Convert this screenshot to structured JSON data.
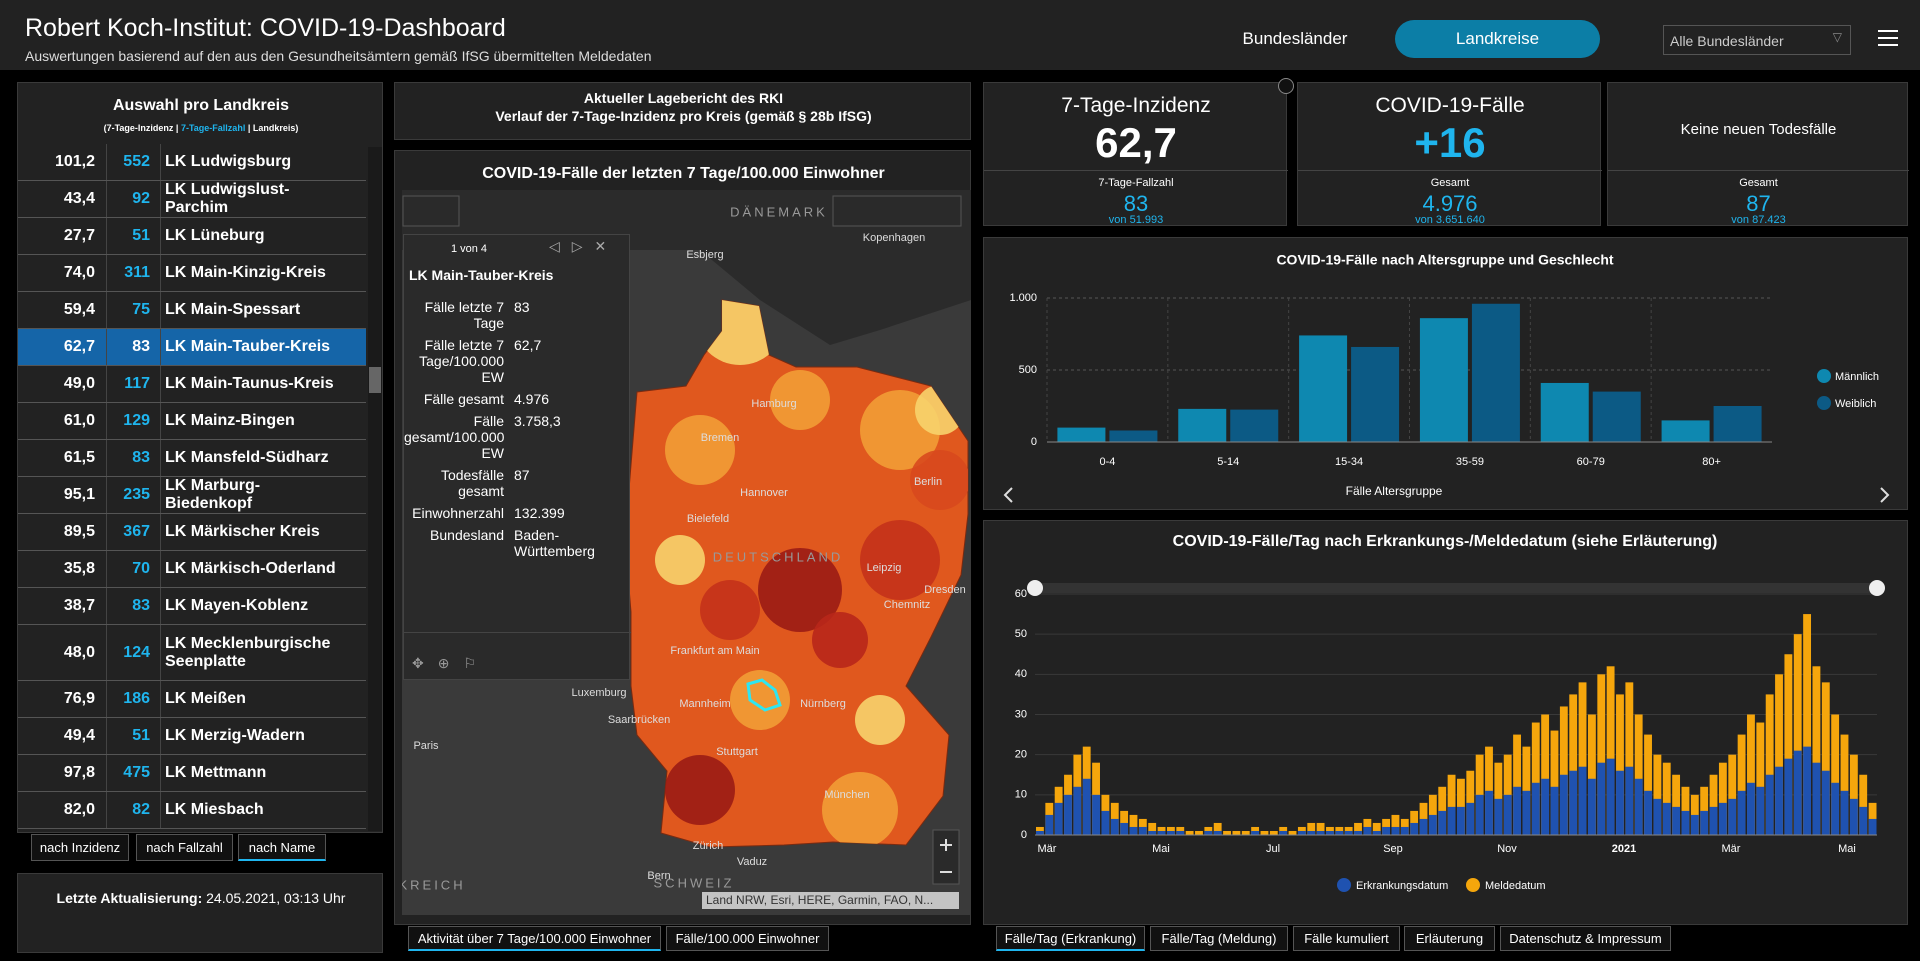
{
  "header": {
    "title": "Robert Koch-Institut: COVID-19-Dashboard",
    "subtitle": "Auswertungen basierend auf den aus den Gesundheitsämtern gemäß IfSG übermittelten Meldedaten",
    "nav": [
      "Bundesländer",
      "Landkreise"
    ],
    "dropdown": "Alle Bundesländer"
  },
  "sidebar": {
    "title": "Auswahl pro Landkreis",
    "legend": [
      "(7-Tage-Inzidenz |",
      "7-Tage-Fallzahl",
      "| Landkreis)"
    ],
    "rows": [
      [
        "101,2",
        "552",
        "LK Ludwigsburg"
      ],
      [
        "43,4",
        "92",
        "LK Ludwigslust-Parchim"
      ],
      [
        "27,7",
        "51",
        "LK Lüneburg"
      ],
      [
        "74,0",
        "311",
        "LK Main-Kinzig-Kreis"
      ],
      [
        "59,4",
        "75",
        "LK Main-Spessart"
      ],
      [
        "62,7",
        "83",
        "LK Main-Tauber-Kreis"
      ],
      [
        "49,0",
        "117",
        "LK Main-Taunus-Kreis"
      ],
      [
        "61,0",
        "129",
        "LK Mainz-Bingen"
      ],
      [
        "61,5",
        "83",
        "LK Mansfeld-Südharz"
      ],
      [
        "95,1",
        "235",
        "LK Marburg-Biedenkopf"
      ],
      [
        "89,5",
        "367",
        "LK Märkischer Kreis"
      ],
      [
        "35,8",
        "70",
        "LK Märkisch-Oderland"
      ],
      [
        "38,7",
        "83",
        "LK Mayen-Koblenz"
      ],
      [
        "48,0",
        "124",
        "LK Mecklenburgische Seenplatte"
      ],
      [
        "76,9",
        "186",
        "LK Meißen"
      ],
      [
        "49,4",
        "51",
        "LK Merzig-Wadern"
      ],
      [
        "97,8",
        "475",
        "LK Mettmann"
      ],
      [
        "82,0",
        "82",
        "LK Miesbach"
      ]
    ],
    "sort_buttons": [
      "nach Inzidenz",
      "nach Fallzahl",
      "nach Name"
    ],
    "update_label": "Letzte Aktualisierung:",
    "update_value": "24.05.2021, 03:13 Uhr"
  },
  "report": {
    "line1": "Aktueller Lagebericht des RKI",
    "line2": "Verlauf der 7-Tage-Inzidenz pro Kreis (gemäß § 28b IfSG)"
  },
  "map": {
    "title": "COVID-19-Fälle der letzten 7 Tage/100.000 Einwohner",
    "labels": [
      "DÄNEMARK",
      "Esbjerg",
      "Kopenhagen",
      "Hamburg",
      "Bremen",
      "Hannover",
      "Berlin",
      "Bielefeld",
      "DEUTSCHLAND",
      "Leipzig",
      "Dresden",
      "Chemnitz",
      "Frankfurt am Main",
      "Luxemburg",
      "Mannheim",
      "Nürnberg",
      "Saarbrücken",
      "Stuttgart",
      "Paris",
      "München",
      "Zürich",
      "Vaduz",
      "Bern",
      "SCHWEIZ",
      "ANKREICH"
    ],
    "attribution": "Land NRW, Esri, HERE, Garmin, FAO, N...",
    "popup": {
      "pager": "1 von 4",
      "title": "LK Main-Tauber-Kreis",
      "fields": [
        [
          "Fälle letzte 7 Tage",
          "83"
        ],
        [
          "Fälle letzte 7 Tage/100.000 EW",
          "62,7"
        ],
        [
          "Fälle gesamt",
          "4.976"
        ],
        [
          "Fälle gesamt/100.000 EW",
          "3.758,3"
        ],
        [
          "Todesfälle gesamt",
          "87"
        ],
        [
          "Einwohnerzahl",
          "132.399"
        ],
        [
          "Bundesland",
          "Baden-Württemberg"
        ]
      ]
    },
    "tabs": [
      "Aktivität über 7 Tage/100.000 Einwohner",
      "Fälle/100.000 Einwohner"
    ]
  },
  "kpis": [
    {
      "title": "7-Tage-Inzidenz",
      "big": "62,7",
      "sub": "7-Tage-Fallzahl",
      "value": "83",
      "of": "von 51.993"
    },
    {
      "title": "COVID-19-Fälle",
      "big": "+16",
      "sub": "Gesamt",
      "value": "4.976",
      "of": "von 3.651.640"
    },
    {
      "title": "Keine neuen Todesfälle",
      "sub": "Gesamt",
      "value": "87",
      "of": "von 87.423"
    }
  ],
  "right_tabs": [
    "Fälle/Tag (Erkrankung)",
    "Fälle/Tag (Meldung)",
    "Fälle kumuliert",
    "Erläuterung",
    "Datenschutz & Impressum"
  ],
  "chart_data": [
    {
      "type": "bar",
      "title": "COVID-19-Fälle nach Altersgruppe und Geschlecht",
      "x_label": "Fälle Altersgruppe",
      "categories": [
        "0-4",
        "5-14",
        "15-34",
        "35-59",
        "60-79",
        "80+"
      ],
      "series": [
        {
          "name": "Männlich",
          "color": "#0e88b0",
          "values": [
            100,
            230,
            740,
            860,
            410,
            150
          ]
        },
        {
          "name": "Weiblich",
          "color": "#0c5a85",
          "values": [
            80,
            225,
            660,
            960,
            350,
            250
          ]
        }
      ],
      "ylim": [
        0,
        1000
      ],
      "yticks": [
        0,
        500,
        {
          "value": 1000,
          "label": "1.000"
        }
      ],
      "grid": true,
      "legend": "right"
    },
    {
      "type": "bar",
      "title": "COVID-19-Fälle/Tag nach Erkrankungs-/Meldedatum (siehe Erläuterung)",
      "x_labels": [
        "Mär",
        "Mai",
        "Jul",
        "Sep",
        "Nov",
        "2021",
        "Mär",
        "Mai"
      ],
      "series": [
        {
          "name": "Meldedatum",
          "color": "#f5a60c",
          "values": [
            2,
            8,
            12,
            15,
            20,
            22,
            18,
            10,
            8,
            6,
            5,
            4,
            3,
            2,
            2,
            2,
            1,
            1,
            2,
            3,
            1,
            1,
            1,
            2,
            1,
            1,
            2,
            1,
            2,
            3,
            3,
            2,
            2,
            2,
            3,
            4,
            3,
            4,
            5,
            4,
            6,
            8,
            10,
            12,
            15,
            14,
            16,
            20,
            22,
            18,
            20,
            25,
            22,
            28,
            30,
            26,
            32,
            35,
            38,
            30,
            40,
            42,
            35,
            38,
            30,
            25,
            20,
            18,
            15,
            12,
            10,
            12,
            15,
            18,
            20,
            25,
            30,
            28,
            35,
            40,
            45,
            50,
            55,
            42,
            38,
            30,
            25,
            20,
            15,
            8
          ]
        },
        {
          "name": "Erkrankungsdatum",
          "color": "#1f52b0",
          "values": [
            1,
            5,
            8,
            10,
            12,
            14,
            10,
            6,
            4,
            3,
            2,
            2,
            1,
            1,
            1,
            1,
            0,
            0,
            1,
            1,
            0,
            0,
            0,
            1,
            0,
            0,
            1,
            0,
            1,
            1,
            1,
            1,
            1,
            1,
            1,
            2,
            1,
            2,
            2,
            2,
            3,
            4,
            5,
            6,
            7,
            7,
            8,
            10,
            11,
            9,
            10,
            12,
            11,
            13,
            14,
            12,
            15,
            16,
            17,
            14,
            18,
            19,
            16,
            17,
            14,
            11,
            9,
            8,
            7,
            6,
            5,
            6,
            7,
            8,
            9,
            11,
            13,
            12,
            15,
            17,
            19,
            21,
            22,
            18,
            16,
            13,
            11,
            9,
            7,
            4
          ]
        }
      ],
      "ylim": [
        0,
        60
      ],
      "yticks": [
        0,
        10,
        20,
        30,
        40,
        50,
        60
      ],
      "grid": true,
      "legend": "bottom"
    }
  ]
}
